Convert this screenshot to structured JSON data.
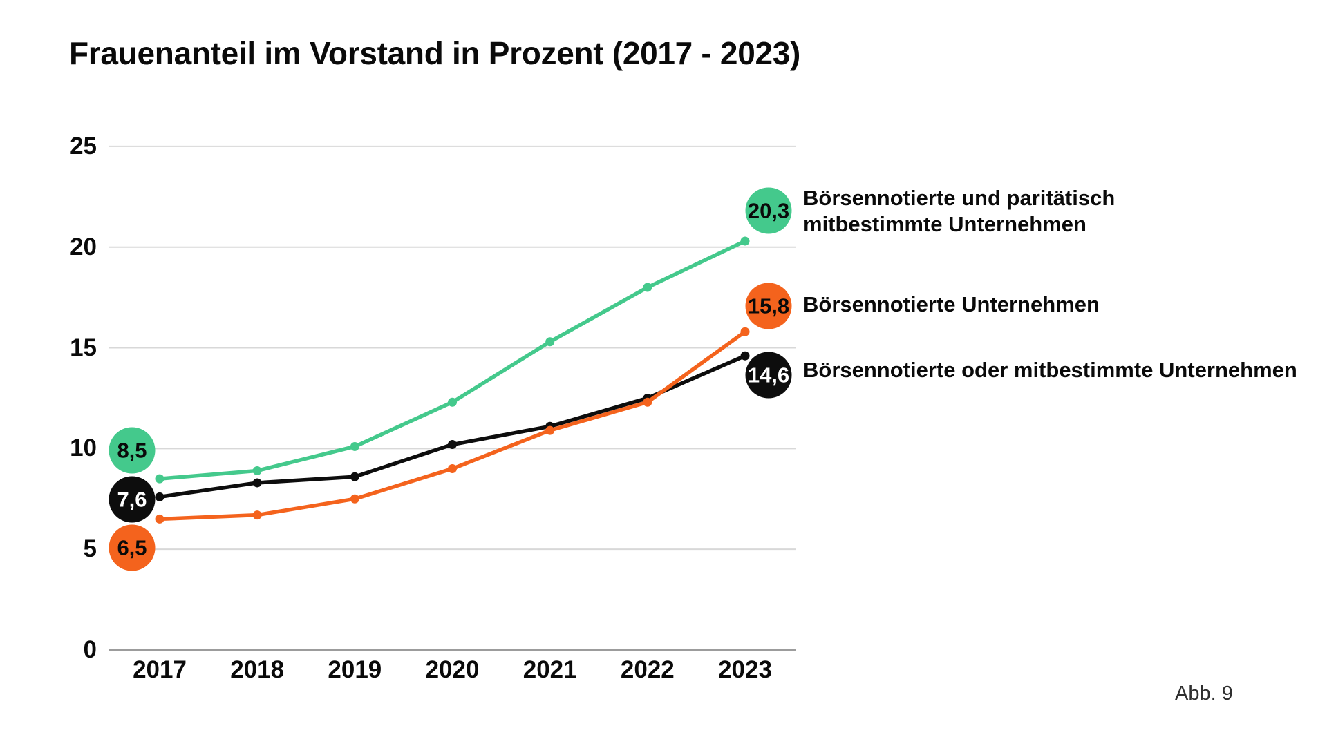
{
  "title": "Frauenanteil im Vorstand in Prozent (2017 - 2023)",
  "figure_label": "Abb. 9",
  "colors": {
    "green": "#44c98c",
    "orange": "#f4631d",
    "black": "#0d0d0d",
    "gridline": "#d8d8d8",
    "zero_axis": "#9c9c9c",
    "text": "#0a0a0a"
  },
  "chart_data": {
    "type": "line",
    "title": "Frauenanteil im Vorstand in Prozent (2017 - 2023)",
    "x": [
      "2017",
      "2018",
      "2019",
      "2020",
      "2021",
      "2022",
      "2023"
    ],
    "yticks": [
      "0",
      "5",
      "10",
      "15",
      "20",
      "25"
    ],
    "ylim": [
      0,
      25
    ],
    "grid": true,
    "legend_position": "right",
    "series": [
      {
        "key": "paritaetisch-mitbestimmt",
        "name": "Börsennotierte und paritätisch mitbestimmte Unternehmen",
        "legend_lines": [
          "Börsennotierte und paritätisch",
          "mitbestimmte Unternehmen"
        ],
        "color": "#44c98c",
        "label_text_color": "#0a0a0a",
        "values": [
          8.5,
          8.9,
          10.1,
          12.3,
          15.3,
          18.0,
          20.3
        ],
        "start_label": "8,5",
        "end_label": "20,3"
      },
      {
        "key": "boersennotiert",
        "name": "Börsennotierte Unternehmen",
        "legend_lines": [
          "Börsennotierte Unternehmen"
        ],
        "color": "#f4631d",
        "label_text_color": "#0a0a0a",
        "values": [
          6.5,
          6.7,
          7.5,
          9.0,
          10.9,
          12.3,
          15.8
        ],
        "start_label": "6,5",
        "end_label": "15,8"
      },
      {
        "key": "boersennotiert-oder-mitbestimmt",
        "name": "Börsennotierte oder mitbestimmte Unternehmen",
        "legend_lines": [
          "Börsennotierte oder mitbestimmte Unternehmen"
        ],
        "color": "#0d0d0d",
        "label_text_color": "#ffffff",
        "values": [
          7.6,
          8.3,
          8.6,
          10.2,
          11.1,
          12.5,
          14.6
        ],
        "start_label": "7,6",
        "end_label": "14,6"
      }
    ]
  }
}
